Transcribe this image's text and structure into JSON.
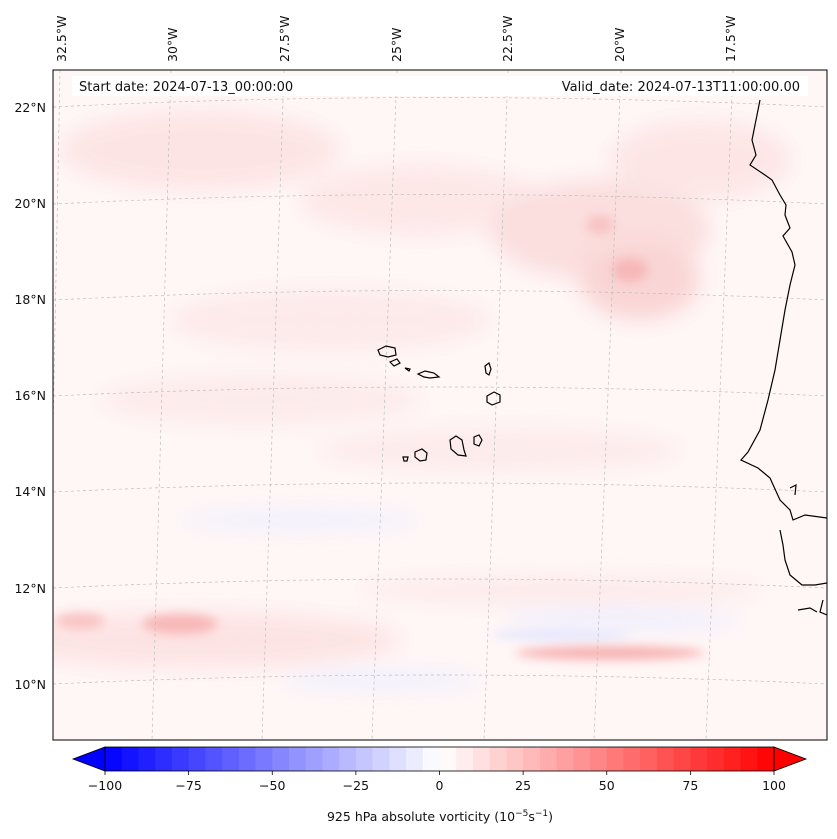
{
  "map": {
    "start_date": "Start date: 2024-07-13_00:00:00",
    "valid_date": "Valid_date: 2024-07-13T11:00:00.00",
    "lon_labels": [
      "32.5°W",
      "30°W",
      "27.5°W",
      "25°W",
      "22.5°W",
      "20°W",
      "17.5°W"
    ],
    "lat_labels": [
      "22°N",
      "20°N",
      "18°N",
      "16°N",
      "14°N",
      "12°N",
      "10°N"
    ]
  },
  "colorbar": {
    "label_prefix": "925 hPa absolute vorticity (10",
    "label_exp1": "−5",
    "label_mid": "s",
    "label_exp2": "−1",
    "label_suffix": ")",
    "ticks": [
      "−100",
      "−75",
      "−50",
      "−25",
      "0",
      "25",
      "50",
      "75",
      "100"
    ],
    "vmin": -100,
    "vmax": 100,
    "levels": 40
  },
  "colors": {
    "negative": "#0000ff",
    "positive": "#ff0000",
    "coast": "#000000",
    "grid": "#bbbbbb"
  }
}
